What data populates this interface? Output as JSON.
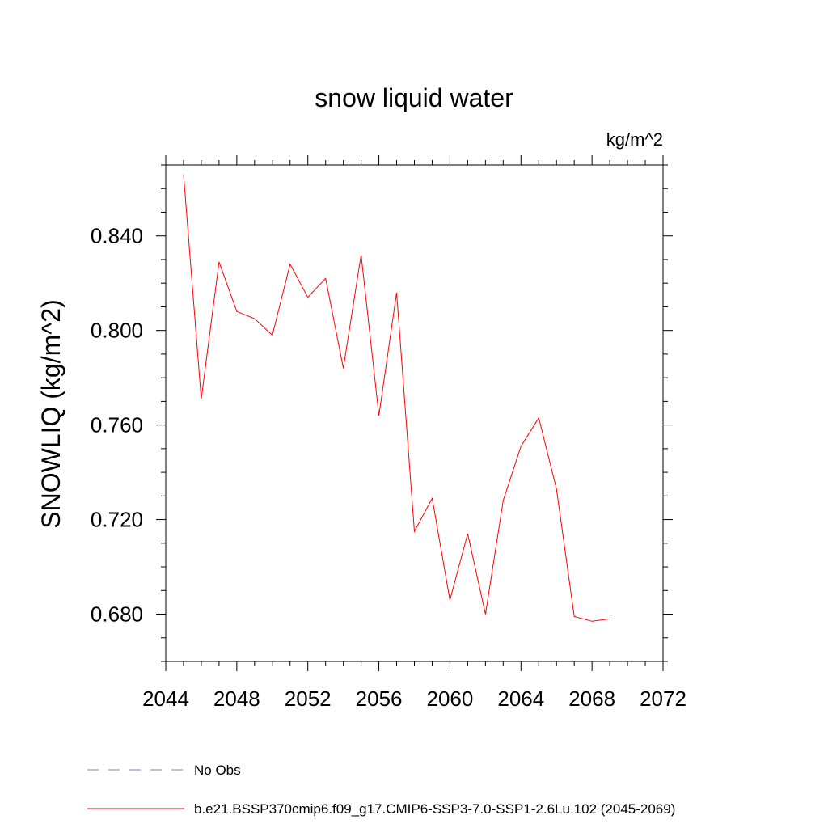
{
  "chart_data": {
    "type": "line",
    "title": "snow liquid water",
    "units_label": "kg/m^2",
    "xlabel": "",
    "ylabel": "SNOWLIQ  (kg/m^2)",
    "xlim": [
      2044,
      2072
    ],
    "ylim": [
      0.66,
      0.87
    ],
    "x_ticks": [
      2044,
      2048,
      2052,
      2056,
      2060,
      2064,
      2068,
      2072
    ],
    "x_tick_labels": [
      "2044",
      "2048",
      "2052",
      "2056",
      "2060",
      "2064",
      "2068",
      "2072"
    ],
    "y_ticks": [
      0.68,
      0.72,
      0.76,
      0.8,
      0.84
    ],
    "y_tick_labels": [
      "0.680",
      "0.720",
      "0.760",
      "0.800",
      "0.840"
    ],
    "grid": false,
    "legend_position": "bottom",
    "series": [
      {
        "name": "No Obs",
        "color": "#7f7fbf",
        "dash": "dashed",
        "x": [],
        "values": []
      },
      {
        "name": "b.e21.BSSP370cmip6.f09_g17.CMIP6-SSP3-7.0-SSP1-2.6Lu.102 (2045-2069)",
        "color": "#ff0000",
        "dash": "solid",
        "x": [
          2045,
          2046,
          2047,
          2048,
          2049,
          2050,
          2051,
          2052,
          2053,
          2054,
          2055,
          2056,
          2057,
          2058,
          2059,
          2060,
          2061,
          2062,
          2063,
          2064,
          2065,
          2066,
          2067,
          2068,
          2069
        ],
        "values": [
          0.866,
          0.771,
          0.829,
          0.808,
          0.805,
          0.798,
          0.828,
          0.814,
          0.822,
          0.784,
          0.832,
          0.764,
          0.816,
          0.715,
          0.729,
          0.686,
          0.714,
          0.68,
          0.728,
          0.751,
          0.763,
          0.733,
          0.679,
          0.677,
          0.678
        ]
      }
    ]
  }
}
